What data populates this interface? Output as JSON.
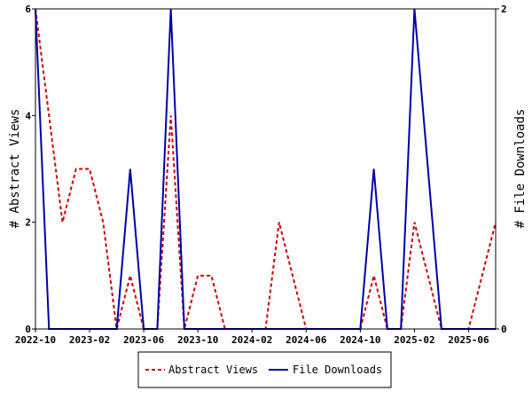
{
  "chart_data": {
    "type": "line",
    "y_left_label": "# Abstract Views",
    "y_right_label": "# File Downloads",
    "y_left_ticks": [
      "0",
      "2",
      "4",
      "6"
    ],
    "y_right_ticks": [
      "0",
      "2"
    ],
    "ylim_left": [
      0,
      6
    ],
    "ylim_right": [
      0,
      2
    ],
    "x_ticks": [
      "2022-10",
      "2023-02",
      "2023-06",
      "2023-10",
      "2024-02",
      "2024-06",
      "2024-10",
      "2025-02",
      "2025-06"
    ],
    "x": [
      "2022-10",
      "2022-11",
      "2022-12",
      "2023-01",
      "2023-02",
      "2023-03",
      "2023-04",
      "2023-05",
      "2023-06",
      "2023-07",
      "2023-08",
      "2023-09",
      "2023-10",
      "2023-11",
      "2023-12",
      "2024-01",
      "2024-02",
      "2024-03",
      "2024-04",
      "2024-05",
      "2024-06",
      "2024-07",
      "2024-08",
      "2024-09",
      "2024-10",
      "2024-11",
      "2024-12",
      "2025-01",
      "2025-02",
      "2025-03",
      "2025-04",
      "2025-05",
      "2025-06",
      "2025-07",
      "2025-08"
    ],
    "series": [
      {
        "name": "Abstract Views",
        "axis": "left",
        "color": "#cc0000",
        "dash": "dashed",
        "values": [
          6,
          4,
          2,
          3,
          3,
          2,
          0,
          1,
          0,
          0,
          4,
          0,
          1,
          1,
          0,
          0,
          0,
          0,
          2,
          1,
          0,
          0,
          0,
          0,
          0,
          1,
          0,
          0,
          2,
          1,
          0,
          0,
          0,
          1,
          2
        ]
      },
      {
        "name": "File Downloads",
        "axis": "right",
        "color": "#0000aa",
        "dash": "solid",
        "values": [
          2,
          0,
          0,
          0,
          0,
          0,
          0,
          1,
          0,
          0,
          2,
          0,
          0,
          0,
          0,
          0,
          0,
          0,
          0,
          0,
          0,
          0,
          0,
          0,
          0,
          1,
          0,
          0,
          2,
          1,
          0,
          0,
          0,
          0,
          0
        ]
      }
    ],
    "legend_position": "bottom"
  }
}
